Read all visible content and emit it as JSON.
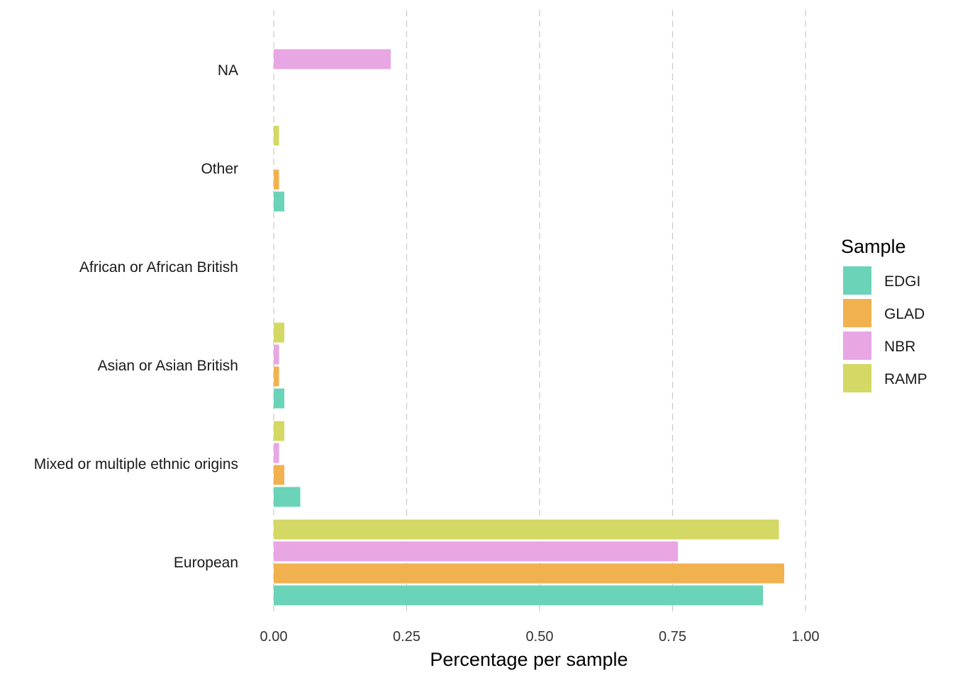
{
  "chart_data": {
    "type": "bar",
    "orientation": "horizontal",
    "categories": [
      "European",
      "Mixed or multiple ethnic origins",
      "Asian or Asian British",
      "African or African British",
      "Other",
      "NA"
    ],
    "series": [
      {
        "name": "EDGI",
        "color": "#6AD3B8",
        "values": [
          0.92,
          0.05,
          0.02,
          0.0,
          0.02,
          0.0
        ]
      },
      {
        "name": "GLAD",
        "color": "#F2B14F",
        "values": [
          0.96,
          0.02,
          0.01,
          0.0,
          0.01,
          0.0
        ]
      },
      {
        "name": "NBR",
        "color": "#E8A6E3",
        "values": [
          0.76,
          0.01,
          0.01,
          0.0,
          0.0,
          0.22
        ]
      },
      {
        "name": "RAMP",
        "color": "#D4D864",
        "values": [
          0.95,
          0.02,
          0.02,
          0.0,
          0.01,
          0.0
        ]
      }
    ],
    "xlabel": "Percentage per sample",
    "ylabel": "",
    "xlim": [
      0,
      1
    ],
    "xticks": [
      "0.00",
      "0.25",
      "0.50",
      "0.75",
      "1.00"
    ],
    "grid": "vertical dashed",
    "legend": {
      "title": "Sample",
      "position": "right"
    }
  }
}
